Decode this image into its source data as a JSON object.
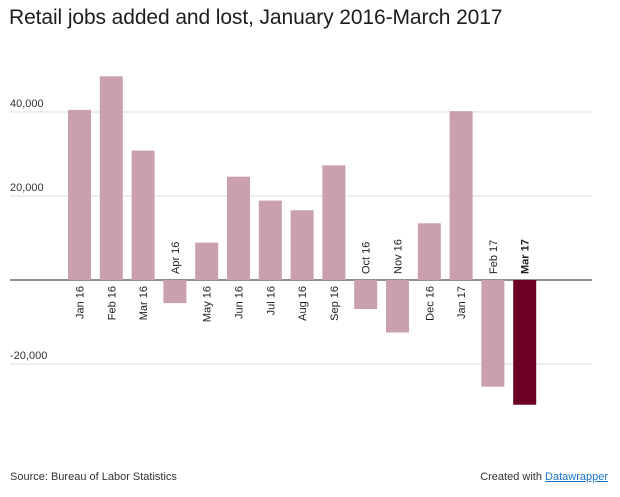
{
  "title": "Retail jobs added and lost, January 2016-March 2017",
  "footer": {
    "source": "Source: Bureau of Labor Statistics",
    "credit_prefix": "Created with ",
    "credit_link": "Datawrapper"
  },
  "colors": {
    "bar": "#c9a0ab",
    "highlight": "#6b0024",
    "grid": "#dddddd",
    "baseline": "#222222"
  },
  "chart_data": {
    "type": "bar",
    "title": "Retail jobs added and lost, January 2016-March 2017",
    "xlabel": "",
    "ylabel": "",
    "categories": [
      "Jan 16",
      "Feb 16",
      "Mar 16",
      "Apr 16",
      "May 16",
      "Jun 16",
      "Jul 16",
      "Aug 16",
      "Sep 16",
      "Oct 16",
      "Nov 16",
      "Dec 16",
      "Jan 17",
      "Feb 17",
      "Mar 17"
    ],
    "values": [
      40500,
      48500,
      30800,
      -5500,
      8900,
      24600,
      18900,
      16600,
      27300,
      -6900,
      -12500,
      13500,
      40200,
      -25400,
      -29700
    ],
    "highlight": "Mar 17",
    "y_ticks": [
      40000,
      20000,
      0,
      -20000
    ],
    "y_tick_labels": [
      "40,000",
      "20,000",
      "",
      "-20,000"
    ],
    "ylim": [
      -37000,
      54000
    ],
    "grid": true
  }
}
